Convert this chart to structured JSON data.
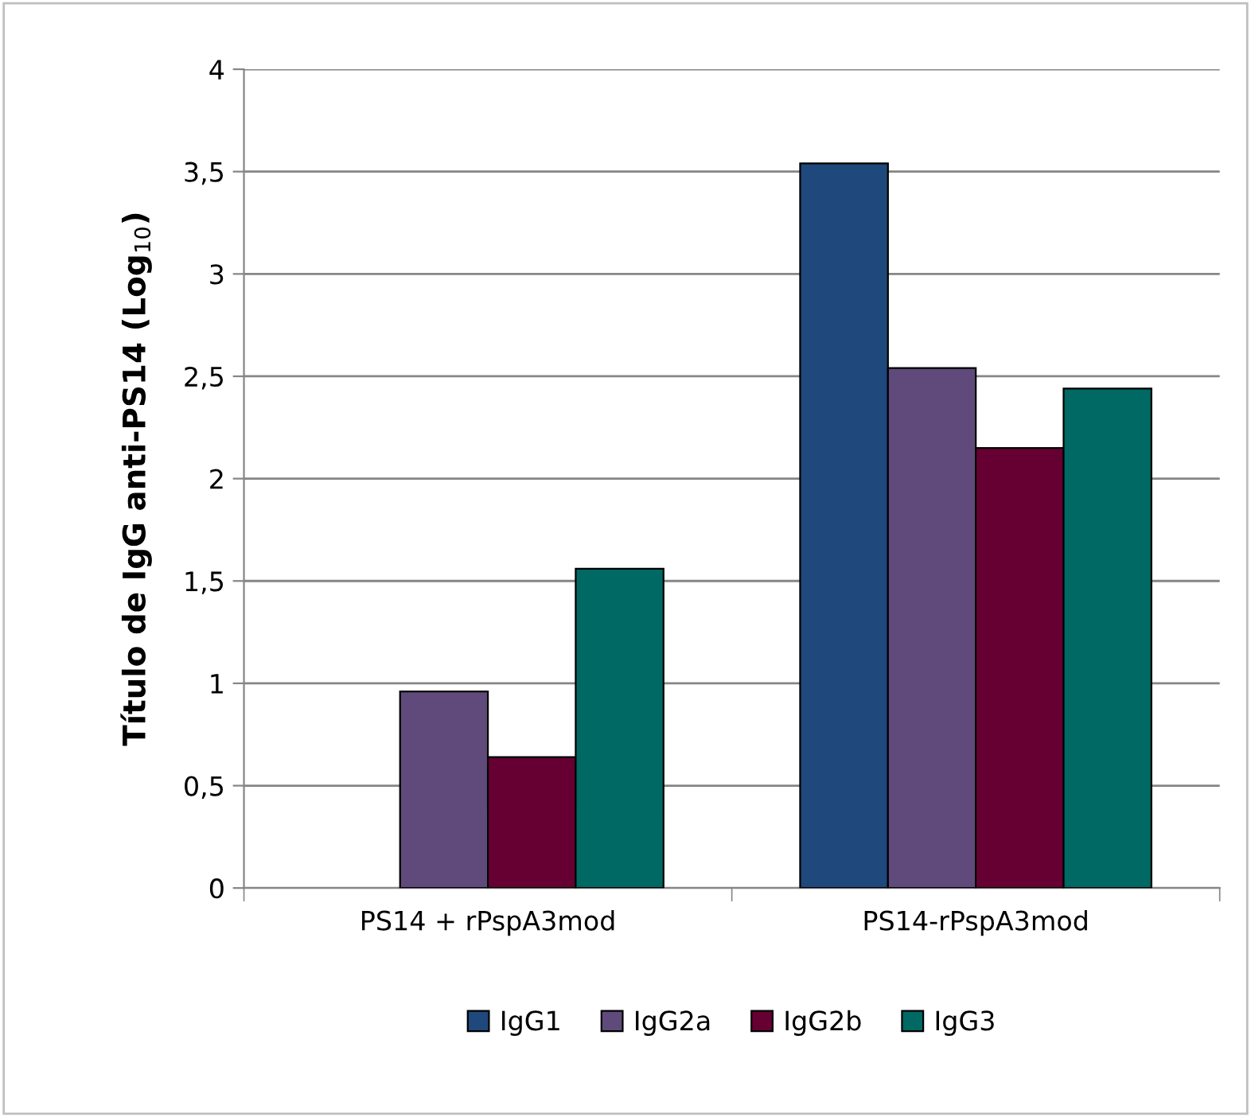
{
  "chart_data": {
    "type": "bar",
    "ylabel": "Título de IgG anti-PS14 (Log$_{10}$)",
    "categories": [
      "PS14 + rPspA3mod",
      "PS14-rPspA3mod"
    ],
    "series": [
      {
        "name": "IgG1",
        "color": "#1f497d",
        "values": [
          null,
          3.54
        ]
      },
      {
        "name": "IgG2a",
        "color": "#604a7b",
        "values": [
          0.96,
          2.54
        ]
      },
      {
        "name": "IgG2b",
        "color": "#660033",
        "values": [
          0.64,
          2.15
        ]
      },
      {
        "name": "IgG3",
        "color": "#006964",
        "values": [
          1.56,
          2.44
        ]
      }
    ],
    "ylim": [
      0,
      4
    ],
    "yticks": [
      0,
      {
        "value": 0.5,
        "label": "0,5"
      },
      1,
      {
        "value": 1.5,
        "label": "1,5"
      },
      2,
      {
        "value": 2.5,
        "label": "2,5"
      },
      3,
      {
        "value": 3.5,
        "label": "3,5"
      },
      4
    ],
    "grid": "y",
    "legend": "bottom"
  }
}
